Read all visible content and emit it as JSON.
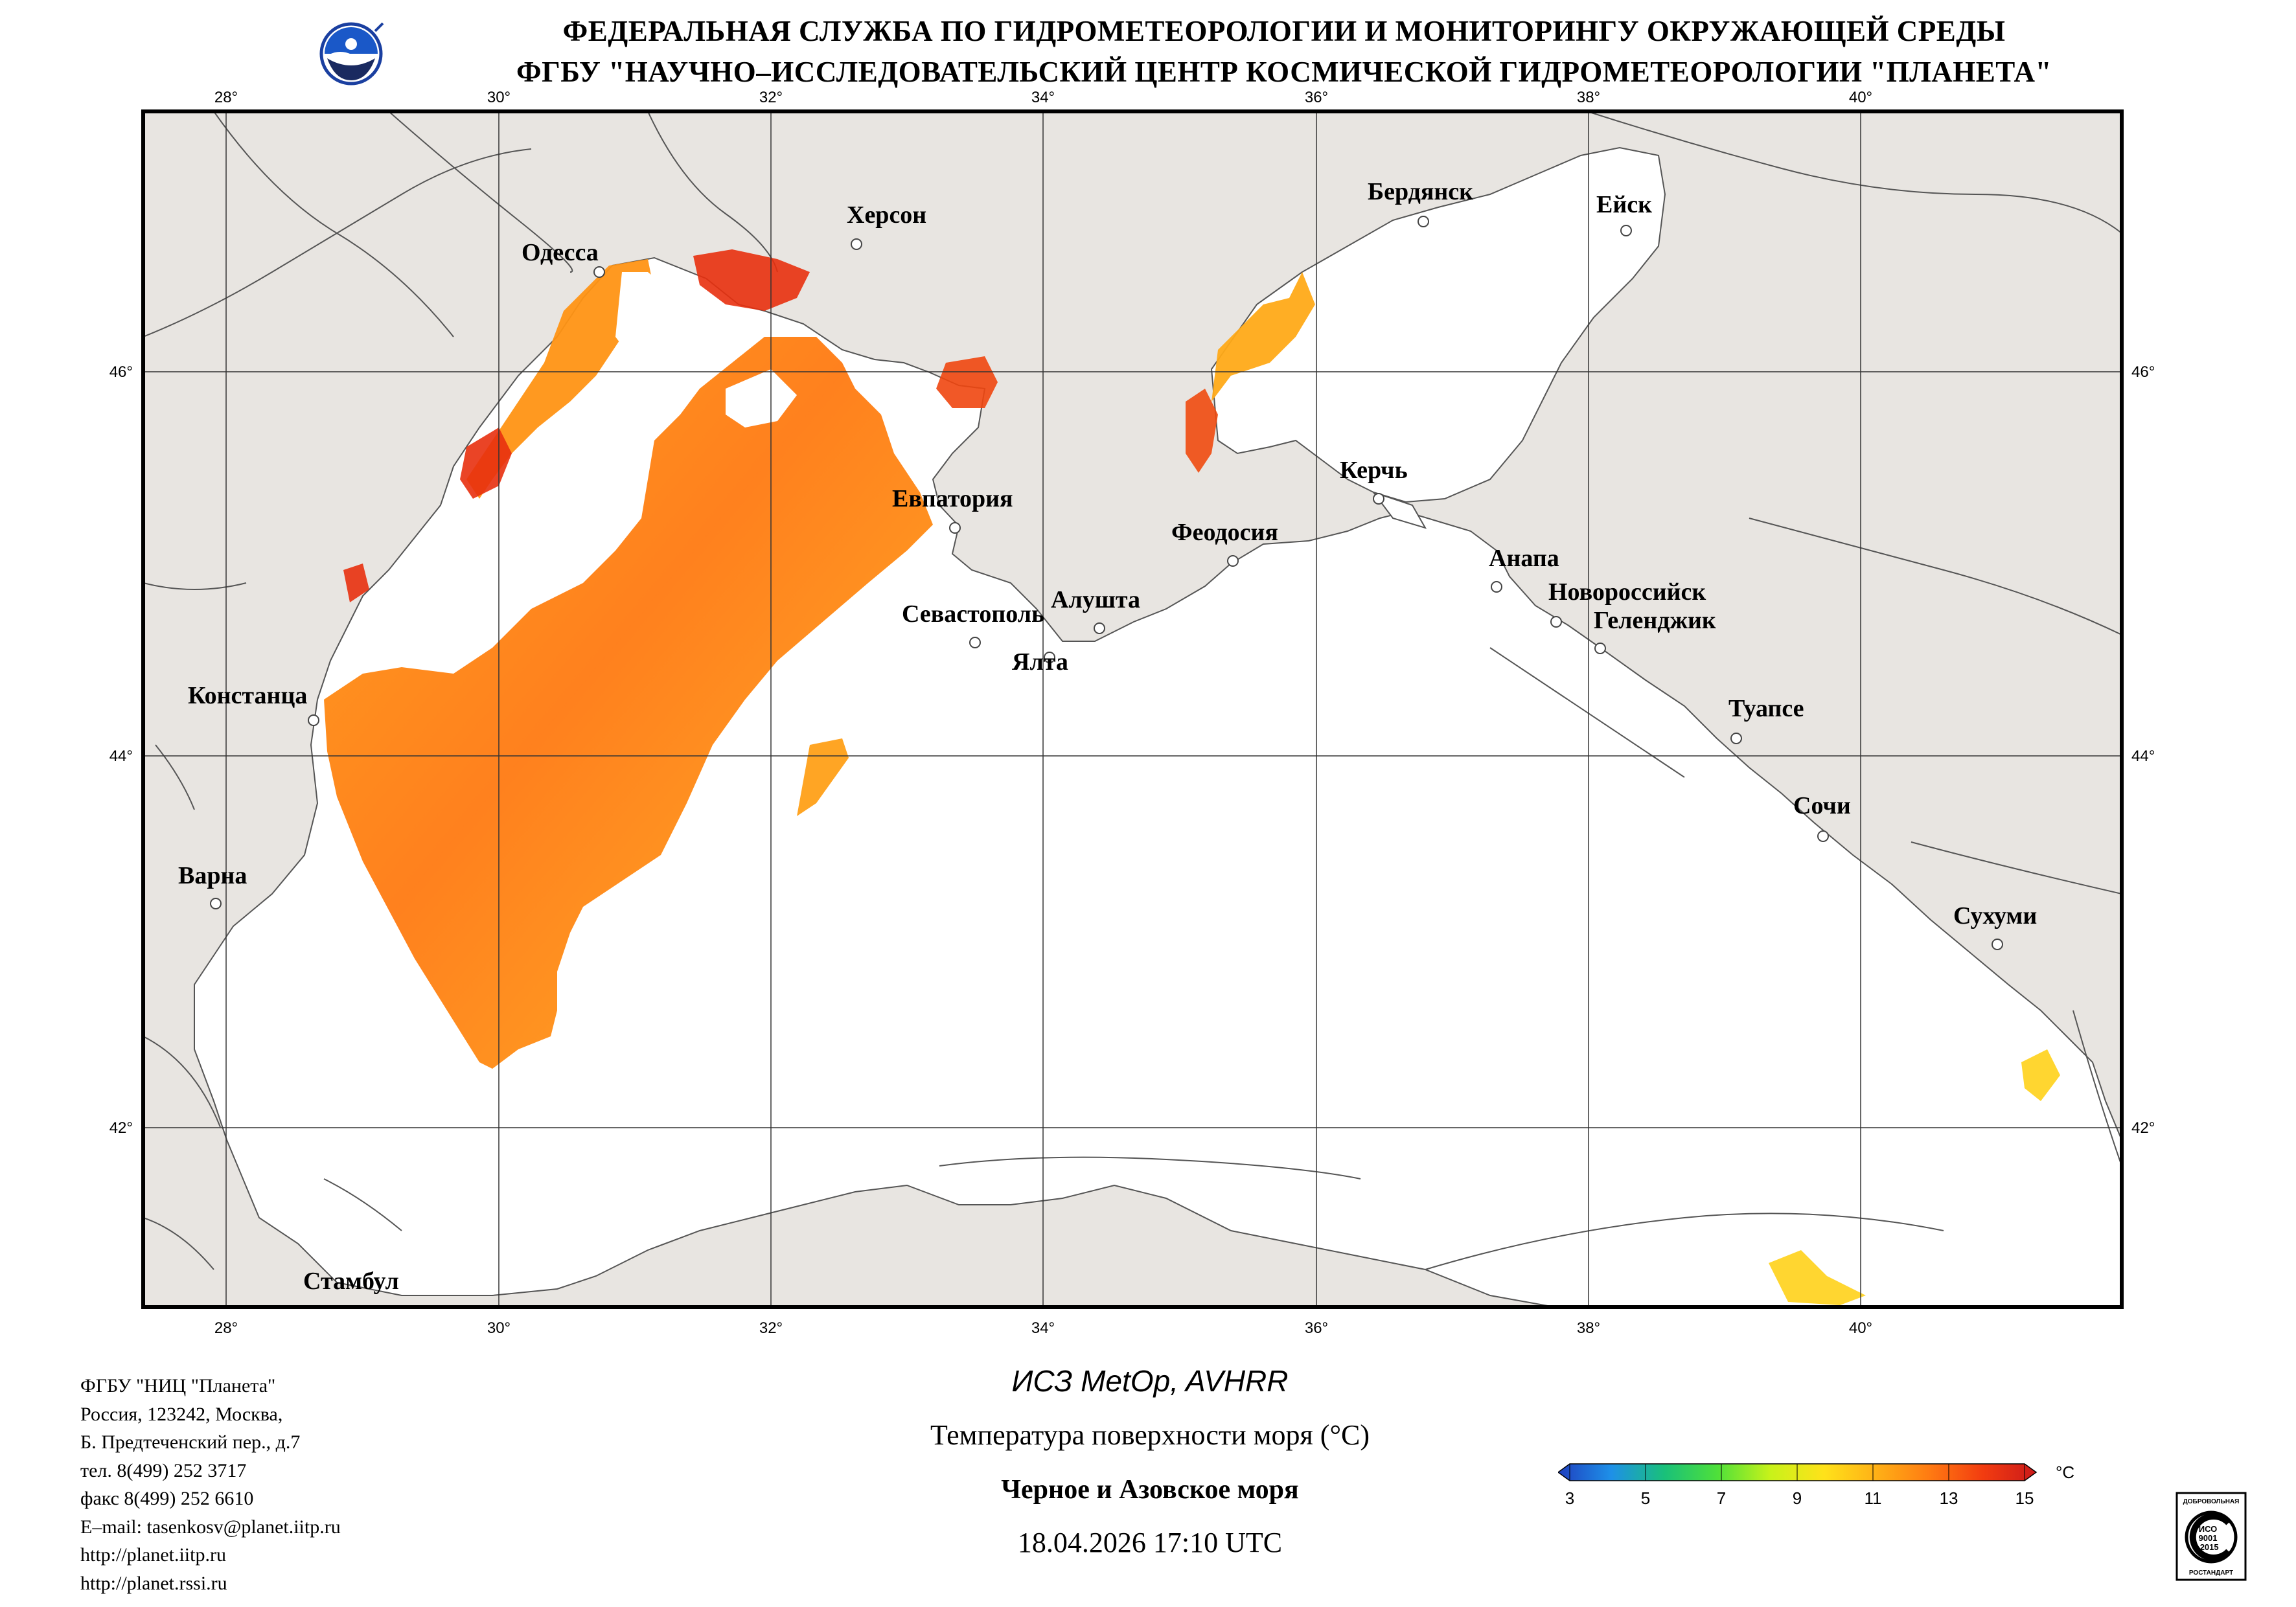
{
  "header": {
    "line1": "ФЕДЕРАЛЬНАЯ СЛУЖБА ПО ГИДРОМЕТЕОРОЛОГИИ И МОНИТОРИНГУ ОКРУЖАЮЩЕЙ СРЕДЫ",
    "line2": "ФГБУ \"НАУЧНО–ИССЛЕДОВАТЕЛЬСКИЙ ЦЕНТР КОСМИЧЕСКОЙ ГИДРОМЕТЕОРОЛОГИИ \"ПЛАНЕТА\""
  },
  "map": {
    "lon_ticks": [
      "28°",
      "30°",
      "32°",
      "34°",
      "36°",
      "38°",
      "40°"
    ],
    "lat_ticks": [
      "46°",
      "44°",
      "42°"
    ],
    "cities": [
      {
        "name": "Одесса"
      },
      {
        "name": "Херсон"
      },
      {
        "name": "Бердянск"
      },
      {
        "name": "Ейск"
      },
      {
        "name": "Евпатория"
      },
      {
        "name": "Керчь"
      },
      {
        "name": "Феодосия"
      },
      {
        "name": "Анапа"
      },
      {
        "name": "Новороссийск"
      },
      {
        "name": "Геленджик"
      },
      {
        "name": "Алушта"
      },
      {
        "name": "Севастополь"
      },
      {
        "name": "Ялта"
      },
      {
        "name": "Констанца"
      },
      {
        "name": "Туапсе"
      },
      {
        "name": "Сочи"
      },
      {
        "name": "Варна"
      },
      {
        "name": "Сухуми"
      },
      {
        "name": "Стамбул"
      }
    ],
    "colors": {
      "land": "#e8e5e1",
      "sea": "#ffffff",
      "border": "#555555"
    }
  },
  "contact": [
    "ФГБУ \"НИЦ \"Планета\"",
    "Россия, 123242, Москва,",
    "Б. Предтеченский пер., д.7",
    "тел. 8(499) 252 3717",
    "факс 8(499) 252 6610",
    "E–mail: tasenkosv@planet.iitp.ru",
    "http://planet.iitp.ru",
    "http://planet.rssi.ru"
  ],
  "caption": {
    "satellite": "ИСЗ MetOp, AVHRR",
    "parameter": "Температура поверхности моря (°C)",
    "region": "Черное и Азовское моря",
    "datetime": "18.04.2026 17:10 UTC"
  },
  "colorbar": {
    "unit": "°C",
    "ticks": [
      "3",
      "5",
      "7",
      "9",
      "11",
      "13",
      "15"
    ],
    "colors": [
      "#1f3fbf",
      "#1e90e8",
      "#19c07a",
      "#4ee03a",
      "#c8f21a",
      "#ffe21a",
      "#ffb016",
      "#ff7a12",
      "#f23c10",
      "#cc1a1a"
    ]
  },
  "certificate": {
    "lines": [
      "ДОБРОВОЛЬНАЯ",
      "ИСО",
      "9001",
      "-2015",
      "РОСТАНДАРТ"
    ]
  }
}
